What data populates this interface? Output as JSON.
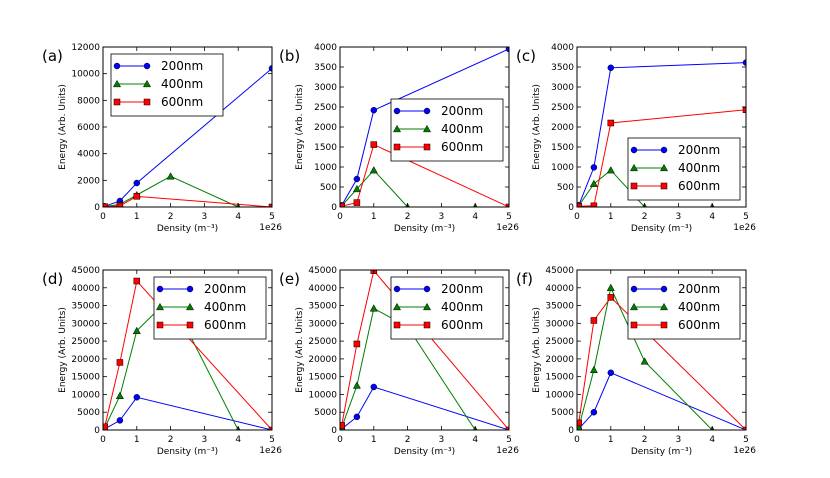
{
  "figure": {
    "xlabel": "Density (m⁻³)",
    "ylabel": "Energy (Arb. Units)",
    "x_offset_text": "1e26"
  },
  "chart_data": [
    {
      "type": "line",
      "title": "(a)",
      "xlabel": "Density (m⁻³)",
      "ylabel": "Energy (Arb. Units)",
      "xlim": [
        0,
        5
      ],
      "ylim": [
        0,
        12000
      ],
      "xticks": [
        0,
        1,
        2,
        3,
        4,
        5
      ],
      "yticks": [
        0,
        2000,
        4000,
        6000,
        8000,
        10000,
        12000
      ],
      "legend": "top-left",
      "series": [
        {
          "name": "200nm",
          "color": "#0000ff",
          "marker": "circle",
          "x": [
            0.05,
            0.5,
            1,
            5
          ],
          "y": [
            50,
            450,
            1800,
            10400
          ]
        },
        {
          "name": "400nm",
          "color": "#007f00",
          "marker": "triangle",
          "x": [
            0.05,
            0.5,
            1,
            2,
            4
          ],
          "y": [
            30,
            200,
            900,
            2300,
            0
          ]
        },
        {
          "name": "600nm",
          "color": "#ff0000",
          "marker": "square",
          "x": [
            0.05,
            0.5,
            1,
            5
          ],
          "y": [
            20,
            80,
            800,
            0
          ]
        }
      ]
    },
    {
      "type": "line",
      "title": "(b)",
      "xlabel": "Density (m⁻³)",
      "ylabel": "Energy (Arb. Units)",
      "xlim": [
        0,
        5
      ],
      "ylim": [
        0,
        4000
      ],
      "xticks": [
        0,
        1,
        2,
        3,
        4,
        5
      ],
      "yticks": [
        0,
        500,
        1000,
        1500,
        2000,
        2500,
        3000,
        3500,
        4000
      ],
      "legend": "center-right",
      "series": [
        {
          "name": "200nm",
          "color": "#0000ff",
          "marker": "circle",
          "x": [
            0.05,
            0.5,
            1,
            5
          ],
          "y": [
            40,
            700,
            2420,
            3950
          ]
        },
        {
          "name": "400nm",
          "color": "#007f00",
          "marker": "triangle",
          "x": [
            0.05,
            0.5,
            1,
            2,
            4
          ],
          "y": [
            30,
            450,
            920,
            0,
            0
          ]
        },
        {
          "name": "600nm",
          "color": "#ff0000",
          "marker": "square",
          "x": [
            0.05,
            0.5,
            1,
            5
          ],
          "y": [
            20,
            110,
            1560,
            0
          ]
        }
      ]
    },
    {
      "type": "line",
      "title": "(c)",
      "xlabel": "Density (m⁻³)",
      "ylabel": "Energy (Arb. Units)",
      "xlim": [
        0,
        5
      ],
      "ylim": [
        0,
        4000
      ],
      "xticks": [
        0,
        1,
        2,
        3,
        4,
        5
      ],
      "yticks": [
        0,
        500,
        1000,
        1500,
        2000,
        2500,
        3000,
        3500,
        4000
      ],
      "legend": "bottom-right",
      "series": [
        {
          "name": "200nm",
          "color": "#0000ff",
          "marker": "circle",
          "x": [
            0.05,
            0.5,
            1,
            5
          ],
          "y": [
            40,
            990,
            3480,
            3610
          ]
        },
        {
          "name": "400nm",
          "color": "#007f00",
          "marker": "triangle",
          "x": [
            0.05,
            0.5,
            1,
            2,
            4
          ],
          "y": [
            30,
            580,
            920,
            0,
            0
          ]
        },
        {
          "name": "600nm",
          "color": "#ff0000",
          "marker": "square",
          "x": [
            0.05,
            0.5,
            1,
            5
          ],
          "y": [
            20,
            30,
            2100,
            2430
          ]
        }
      ]
    },
    {
      "type": "line",
      "title": "(d)",
      "xlabel": "Density (m⁻³)",
      "ylabel": "Energy (Arb. Units)",
      "xlim": [
        0,
        5
      ],
      "ylim": [
        0,
        45000
      ],
      "xticks": [
        0,
        1,
        2,
        3,
        4,
        5
      ],
      "yticks": [
        0,
        5000,
        10000,
        15000,
        20000,
        25000,
        30000,
        35000,
        40000,
        45000
      ],
      "legend": "top-right",
      "series": [
        {
          "name": "200nm",
          "color": "#0000ff",
          "marker": "circle",
          "x": [
            0.05,
            0.5,
            1,
            5
          ],
          "y": [
            300,
            2700,
            9200,
            0
          ]
        },
        {
          "name": "400nm",
          "color": "#007f00",
          "marker": "triangle",
          "x": [
            0.05,
            0.5,
            1,
            2,
            4
          ],
          "y": [
            600,
            9600,
            27900,
            37300,
            0
          ]
        },
        {
          "name": "600nm",
          "color": "#ff0000",
          "marker": "square",
          "x": [
            0.05,
            0.5,
            1,
            5
          ],
          "y": [
            900,
            19000,
            41900,
            0
          ]
        }
      ]
    },
    {
      "type": "line",
      "title": "(e)",
      "xlabel": "Density (m⁻³)",
      "ylabel": "Energy (Arb. Units)",
      "xlim": [
        0,
        5
      ],
      "ylim": [
        0,
        45000
      ],
      "xticks": [
        0,
        1,
        2,
        3,
        4,
        5
      ],
      "yticks": [
        0,
        5000,
        10000,
        15000,
        20000,
        25000,
        30000,
        35000,
        40000,
        45000
      ],
      "legend": "top-right",
      "series": [
        {
          "name": "200nm",
          "color": "#0000ff",
          "marker": "circle",
          "x": [
            0.05,
            0.5,
            1,
            5
          ],
          "y": [
            300,
            3700,
            12100,
            0
          ]
        },
        {
          "name": "400nm",
          "color": "#007f00",
          "marker": "triangle",
          "x": [
            0.05,
            0.5,
            1,
            2,
            4
          ],
          "y": [
            700,
            12500,
            34200,
            29000,
            0
          ]
        },
        {
          "name": "600nm",
          "color": "#ff0000",
          "marker": "square",
          "x": [
            0.05,
            0.5,
            1,
            5
          ],
          "y": [
            1300,
            24200,
            44800,
            0
          ]
        }
      ]
    },
    {
      "type": "line",
      "title": "(f)",
      "xlabel": "Density (m⁻³)",
      "ylabel": "Energy (Arb. Units)",
      "xlim": [
        0,
        5
      ],
      "ylim": [
        0,
        45000
      ],
      "xticks": [
        0,
        1,
        2,
        3,
        4,
        5
      ],
      "yticks": [
        0,
        5000,
        10000,
        15000,
        20000,
        25000,
        30000,
        35000,
        40000,
        45000
      ],
      "legend": "top-right",
      "series": [
        {
          "name": "200nm",
          "color": "#0000ff",
          "marker": "circle",
          "x": [
            0.05,
            0.5,
            1,
            5
          ],
          "y": [
            300,
            5000,
            16100,
            0
          ]
        },
        {
          "name": "400nm",
          "color": "#007f00",
          "marker": "triangle",
          "x": [
            0.05,
            0.5,
            1,
            2,
            4
          ],
          "y": [
            700,
            16900,
            40000,
            19300,
            0
          ]
        },
        {
          "name": "600nm",
          "color": "#ff0000",
          "marker": "square",
          "x": [
            0.05,
            0.5,
            1,
            5
          ],
          "y": [
            2000,
            30800,
            37300,
            0
          ]
        }
      ]
    }
  ]
}
